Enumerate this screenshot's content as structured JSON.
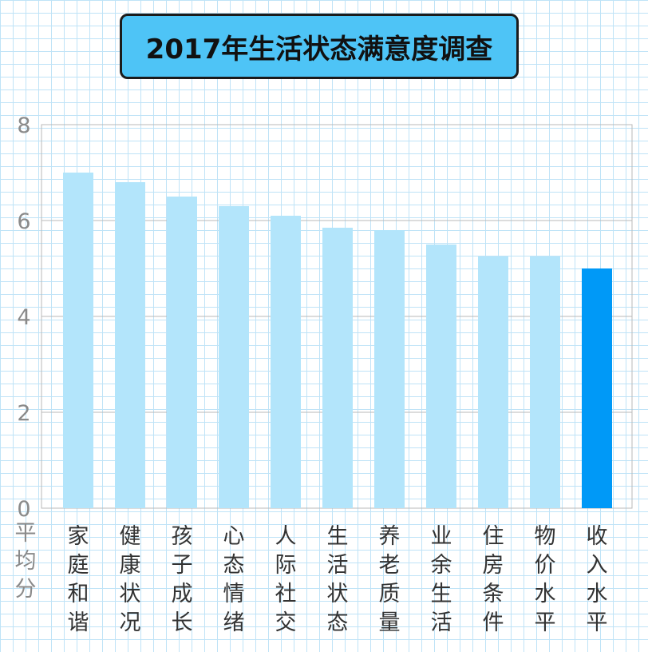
{
  "chart_data": {
    "type": "bar",
    "title": "2017年生活状态满意度调查",
    "ylabel": "平均分",
    "ylim": [
      0,
      8
    ],
    "yticks": [
      0,
      2,
      4,
      6,
      8
    ],
    "grid": true,
    "categories": [
      "家庭和谐",
      "健康状况",
      "孩子成长",
      "心态情绪",
      "人际社交",
      "生活状态",
      "养老质量",
      "业余生活",
      "住房条件",
      "物价水平",
      "收入水平"
    ],
    "values": [
      7.0,
      6.8,
      6.5,
      6.3,
      6.1,
      5.85,
      5.8,
      5.5,
      5.25,
      5.25,
      5.0
    ],
    "colors": {
      "bar": "#b3e5fb",
      "highlight_bar": "#0099f7",
      "highlight_category": "收入水平",
      "title_box": "#4ec4f6"
    }
  }
}
